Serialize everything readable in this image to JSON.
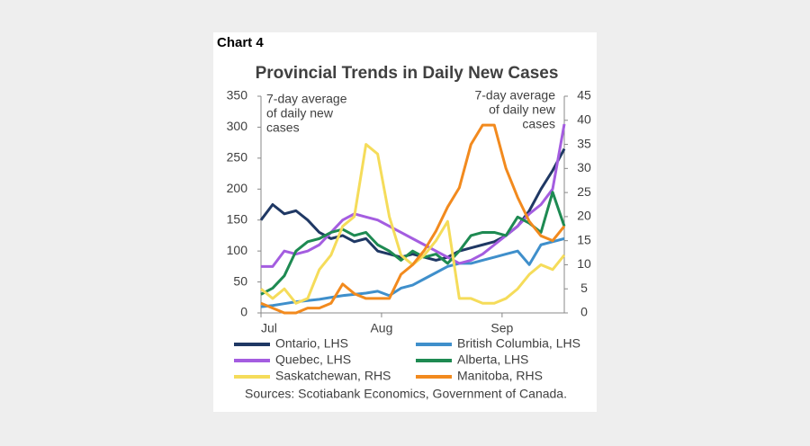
{
  "chart_data": {
    "type": "line",
    "label": "Chart 4",
    "title": "Provincial Trends in Daily New Cases",
    "annotations": {
      "left": [
        "7-day average",
        "of daily new",
        "cases"
      ],
      "right": [
        "7-day average",
        "of daily new",
        "cases"
      ]
    },
    "source": "Sources: Scotiabank Economics, Government of Canada.",
    "x": [
      0,
      3,
      6,
      9,
      12,
      15,
      18,
      21,
      24,
      27,
      30,
      33,
      36,
      39,
      42,
      45,
      48,
      51,
      54,
      57,
      60,
      63,
      66,
      69,
      72,
      75,
      78
    ],
    "xlim": [
      0,
      78
    ],
    "xticks": [
      {
        "value": 0,
        "label": "Jul"
      },
      {
        "value": 31,
        "label": "Aug"
      },
      {
        "value": 62,
        "label": "Sep"
      }
    ],
    "ylim": [
      0,
      350
    ],
    "yticks": [
      0,
      50,
      100,
      150,
      200,
      250,
      300,
      350
    ],
    "y2lim": [
      0,
      45
    ],
    "y2ticks": [
      0,
      5,
      10,
      15,
      20,
      25,
      30,
      35,
      40,
      45
    ],
    "series": [
      {
        "name": "Ontario, LHS",
        "color": "#1f3864",
        "values": [
          150,
          175,
          160,
          165,
          150,
          130,
          120,
          125,
          115,
          120,
          100,
          95,
          90,
          95,
          90,
          85,
          90,
          100,
          105,
          110,
          115,
          125,
          140,
          165,
          200,
          230,
          265
        ]
      },
      {
        "name": "British Columbia, LHS",
        "color": "#3f8fcb",
        "values": [
          10,
          12,
          15,
          18,
          20,
          22,
          25,
          28,
          30,
          32,
          35,
          28,
          40,
          45,
          55,
          65,
          75,
          80,
          80,
          85,
          90,
          95,
          100,
          78,
          110,
          115,
          120
        ]
      },
      {
        "name": "Quebec, LHS",
        "color": "#a45de0",
        "values": [
          75,
          75,
          100,
          95,
          100,
          110,
          130,
          150,
          160,
          155,
          150,
          140,
          130,
          120,
          110,
          100,
          90,
          80,
          85,
          95,
          110,
          125,
          140,
          160,
          175,
          200,
          305
        ]
      },
      {
        "name": "Alberta, LHS",
        "color": "#1e8a52",
        "values": [
          30,
          40,
          60,
          100,
          115,
          120,
          130,
          135,
          125,
          130,
          110,
          100,
          85,
          100,
          90,
          95,
          80,
          100,
          125,
          130,
          130,
          125,
          155,
          145,
          130,
          195,
          140
        ]
      },
      {
        "name": "Saskatchewan, RHS",
        "color": "#f5dc5a",
        "axis": "y2",
        "values": [
          5,
          3,
          5,
          2,
          3,
          9,
          12,
          18,
          20,
          35,
          33,
          20,
          12,
          10,
          12,
          15,
          19,
          3,
          3,
          2,
          2,
          3,
          5,
          8,
          10,
          9,
          12
        ]
      },
      {
        "name": "Manitoba, RHS",
        "color": "#f28a1e",
        "axis": "y2",
        "values": [
          2,
          1,
          0,
          0,
          1,
          1,
          2,
          6,
          4,
          3,
          3,
          3,
          8,
          10,
          13,
          17,
          22,
          26,
          35,
          39,
          39,
          30,
          24,
          19,
          16,
          15,
          18
        ]
      }
    ]
  }
}
